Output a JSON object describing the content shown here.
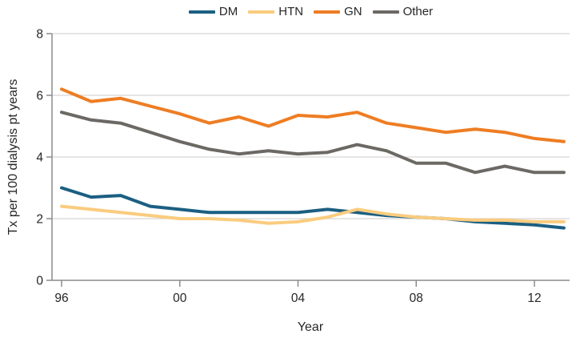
{
  "chart_data": {
    "type": "line",
    "title": "",
    "xlabel": "Year",
    "ylabel": "Tx per 100 dialysis pt years",
    "x_labels": [
      "96",
      "97",
      "98",
      "99",
      "00",
      "01",
      "02",
      "03",
      "04",
      "05",
      "06",
      "07",
      "08",
      "09",
      "10",
      "11",
      "12",
      "13"
    ],
    "x_tick_labels": [
      "96",
      "00",
      "04",
      "08",
      "12"
    ],
    "x_tick_indices": [
      0,
      4,
      8,
      12,
      16
    ],
    "y_ticks": [
      0,
      2,
      4,
      6,
      8
    ],
    "ylim": [
      0,
      8
    ],
    "grid_values": [
      2,
      4,
      6,
      8
    ],
    "grid_on": true,
    "legend_position": "top-center",
    "series": [
      {
        "name": "DM",
        "color": "#1B5F82",
        "values": [
          3.0,
          2.7,
          2.75,
          2.4,
          2.3,
          2.2,
          2.2,
          2.2,
          2.2,
          2.3,
          2.2,
          2.1,
          2.05,
          2.0,
          1.9,
          1.85,
          1.8,
          1.7
        ]
      },
      {
        "name": "HTN",
        "color": "#FACC7F",
        "values": [
          2.4,
          2.3,
          2.2,
          2.1,
          2.0,
          2.0,
          1.95,
          1.85,
          1.9,
          2.05,
          2.3,
          2.15,
          2.05,
          2.0,
          1.95,
          1.95,
          1.9,
          1.9
        ]
      },
      {
        "name": "GN",
        "color": "#EE7D23",
        "values": [
          6.2,
          5.8,
          5.9,
          5.65,
          5.4,
          5.1,
          5.3,
          5.0,
          5.35,
          5.3,
          5.45,
          5.1,
          4.95,
          4.8,
          4.9,
          4.8,
          4.6,
          4.5
        ]
      },
      {
        "name": "Other",
        "color": "#6C6965",
        "values": [
          5.45,
          5.2,
          5.1,
          4.8,
          4.5,
          4.25,
          4.1,
          4.2,
          4.1,
          4.15,
          4.4,
          4.2,
          3.8,
          3.8,
          3.5,
          3.7,
          3.5,
          3.5
        ]
      }
    ]
  },
  "colors": {
    "grid": "#D8D5D3",
    "axis": "#8C8C8C",
    "text": "#262626",
    "background": "#FFFFFF"
  }
}
